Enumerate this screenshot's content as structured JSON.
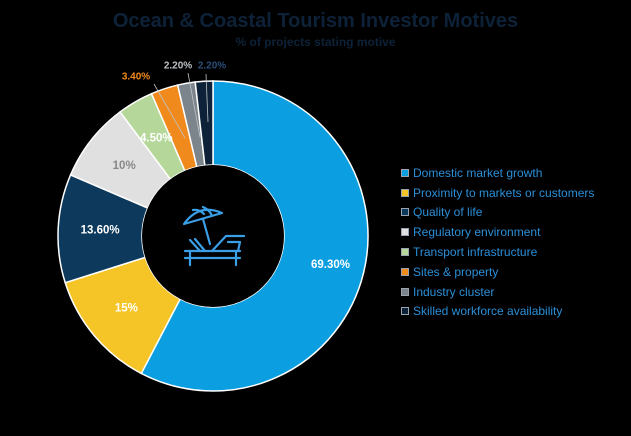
{
  "chart_data": {
    "type": "pie",
    "title": "Ocean & Coastal Tourism Investor Motives",
    "subtitle": "% of projects stating motive",
    "categories": [
      "Domestic market growth",
      "Proximity to markets or customers",
      "Quality of life",
      "Regulatory environment",
      "Transport infrastructure",
      "Sites & property",
      "Industry cluster",
      "Skilled workforce availability"
    ],
    "values": [
      69.3,
      15,
      13.6,
      10,
      4.5,
      3.4,
      2.2,
      2.2
    ],
    "data_labels": [
      "69.30%",
      "15%",
      "13.60%",
      "10%",
      "4.50%",
      "3.40%",
      "2.20%",
      "2.20%"
    ],
    "colors": [
      "#0b9ee0",
      "#f5c527",
      "#0d3a5c",
      "#e0e0e0",
      "#b5d89a",
      "#f08a1c",
      "#7d858c",
      "#0d2238"
    ],
    "label_colors": [
      "#ffffff",
      "#ffffff",
      "#ffffff",
      "#888888",
      "#ffffff",
      "#f08a1c",
      "#bfc3c7",
      "#2a4f7a"
    ],
    "legend_position": "right",
    "donut": true,
    "center_icon": "beach-umbrella-icon"
  }
}
